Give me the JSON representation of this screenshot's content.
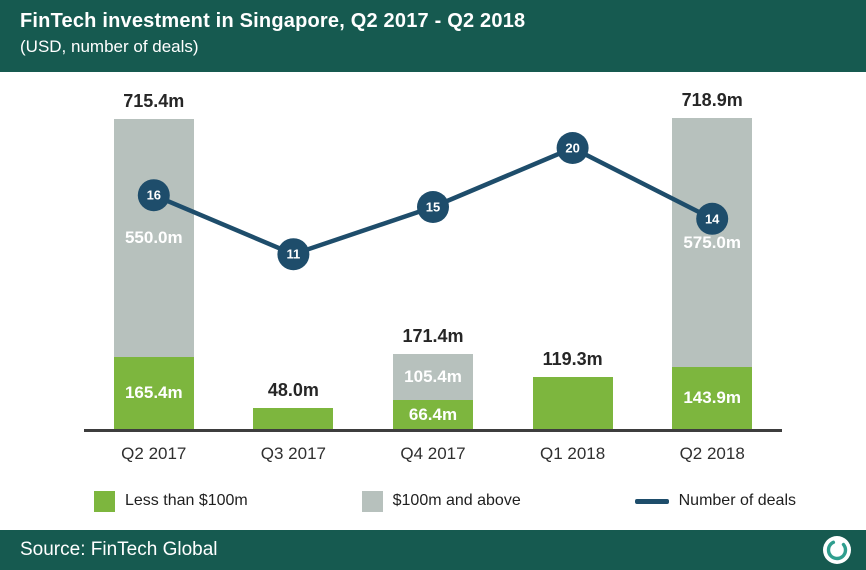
{
  "header": {
    "title": "FinTech investment in Singapore, Q2 2017 - Q2 2018",
    "subtitle": "(USD, number of deals)"
  },
  "footer": {
    "source": "Source: FinTech Global"
  },
  "legend": [
    {
      "label": "Less than $100m",
      "swatch": "green"
    },
    {
      "label": "$100m and above",
      "swatch": "gray"
    },
    {
      "label": "Number of deals",
      "swatch": "line"
    }
  ],
  "colors": {
    "teal": "#165a50",
    "green": "#7db63e",
    "gray": "#b7c1bd",
    "blue": "#1e4d6b",
    "axis": "#3d3d3d"
  },
  "chart_data": {
    "type": "bar+line",
    "title": "FinTech investment in Singapore, Q2 2017 - Q2 2018",
    "subtitle": "(USD, number of deals)",
    "categories": [
      "Q2 2017",
      "Q3 2017",
      "Q4 2017",
      "Q1 2018",
      "Q2 2018"
    ],
    "series": [
      {
        "name": "Less than $100m",
        "type": "bar",
        "stack": "usd",
        "color": "#7db63e",
        "values": [
          165.4,
          48.0,
          66.4,
          119.3,
          143.9
        ]
      },
      {
        "name": "$100m and above",
        "type": "bar",
        "stack": "usd",
        "color": "#b7c1bd",
        "values": [
          550.0,
          0,
          105.4,
          0,
          575.0
        ]
      },
      {
        "name": "Number of deals",
        "type": "line",
        "color": "#1e4d6b",
        "values": [
          16,
          11,
          15,
          20,
          14
        ]
      }
    ],
    "totals_labels": [
      "715.4m",
      "48.0m",
      "171.4m",
      "119.3m",
      "718.9m"
    ],
    "segment_labels": {
      "green": [
        "165.4m",
        null,
        "66.4m",
        null,
        "143.9m"
      ],
      "gray": [
        "550.0m",
        null,
        "105.4m",
        null,
        "575.0m"
      ]
    },
    "unit": "USD millions",
    "legend_position": "bottom",
    "grid": false
  }
}
